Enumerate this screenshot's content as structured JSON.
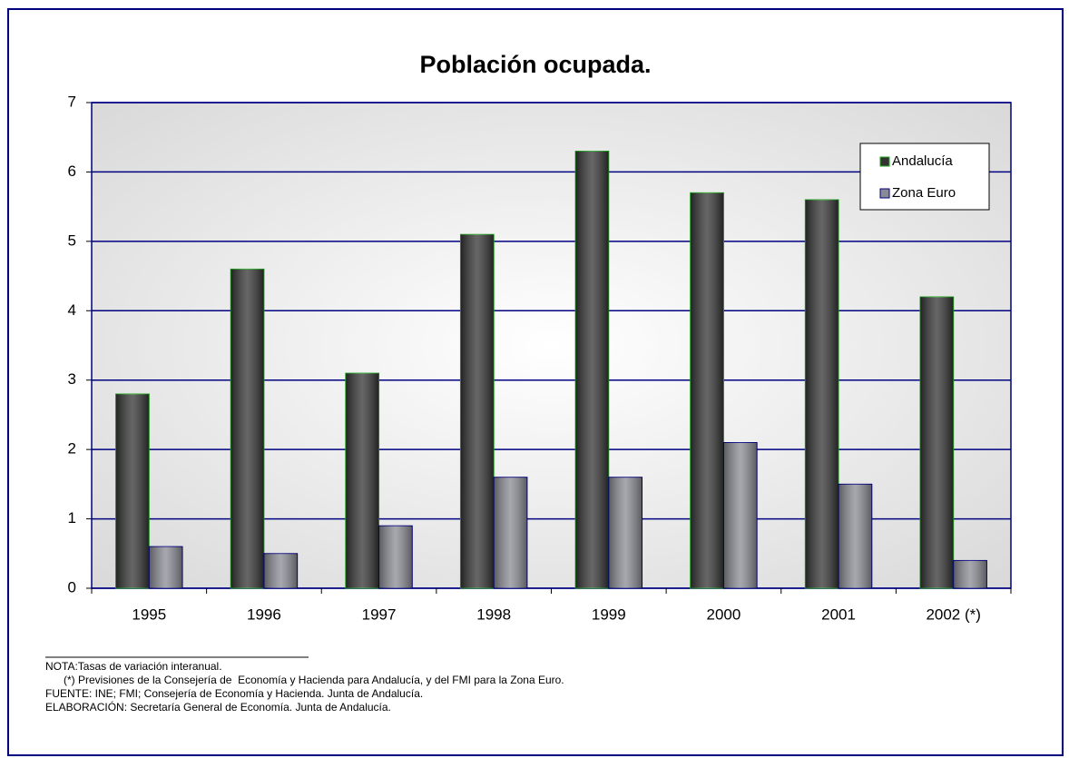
{
  "chart_data": {
    "type": "bar",
    "title": "Población ocupada.",
    "categories": [
      "1995",
      "1996",
      "1997",
      "1998",
      "1999",
      "2000",
      "2001",
      "2002 (*)"
    ],
    "series": [
      {
        "name": "Andalucía",
        "color": "#333333",
        "values": [
          2.8,
          4.6,
          3.1,
          5.1,
          6.3,
          5.7,
          5.6,
          4.2
        ]
      },
      {
        "name": "Zona Euro",
        "color": "#8a8a94",
        "values": [
          0.6,
          0.5,
          0.9,
          1.6,
          1.6,
          2.1,
          1.5,
          0.4
        ]
      }
    ],
    "ylim": [
      0,
      7
    ],
    "yticks": [
      0,
      1,
      2,
      3,
      4,
      5,
      6,
      7
    ],
    "grid": true,
    "legend": "top-right"
  },
  "notes": [
    "NOTA:Tasas de variación interanual.",
    "      (*) Previsiones de la Consejería de  Economía y Hacienda para Andalucía, y del FMI para la Zona Euro.",
    "FUENTE: INE; FMI; Consejería de Economía y Hacienda. Junta de Andalucía.",
    "ELABORACIÓN: Secretaría General de Economía. Junta de Andalucía."
  ]
}
